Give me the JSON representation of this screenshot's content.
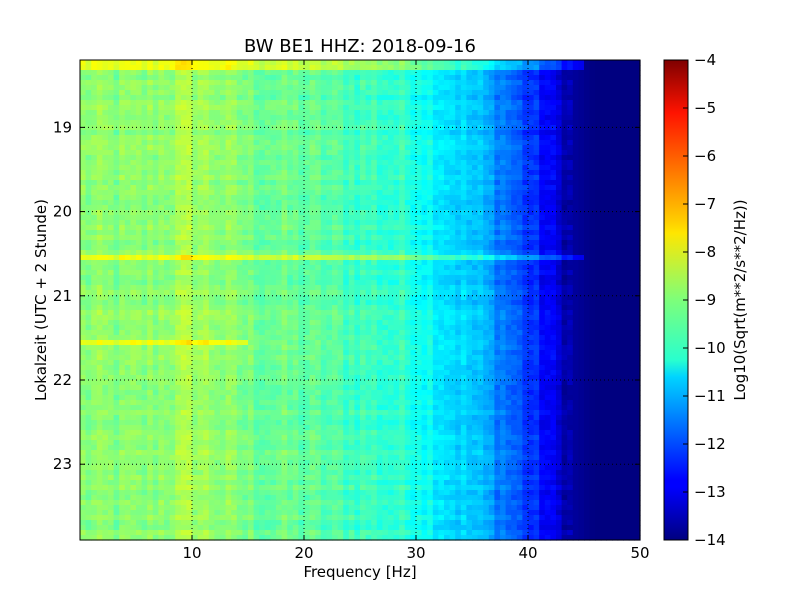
{
  "chart_data": {
    "type": "heatmap",
    "title": "BW BE1 HHZ: 2018-09-16",
    "xlabel": "Frequency [Hz]",
    "ylabel": "Lokalzeit (UTC + 2 Stunde)",
    "colorbar_label": "Log10(Sqrt(m**2/s**2/Hz))",
    "xlim": [
      0,
      50
    ],
    "ylim": [
      18.2,
      23.9
    ],
    "y_inverted": true,
    "x_ticks": [
      10,
      20,
      30,
      40,
      50
    ],
    "x_tick_labels": [
      "10",
      "20",
      "30",
      "40",
      "50"
    ],
    "y_ticks": [
      19,
      20,
      21,
      22,
      23
    ],
    "y_tick_labels": [
      "19",
      "20",
      "21",
      "22",
      "23"
    ],
    "grid": true,
    "colormap": "jet",
    "color_range": [
      -14,
      -4
    ],
    "colorbar_ticks": [
      -4,
      -5,
      -6,
      -7,
      -8,
      -9,
      -10,
      -11,
      -12,
      -13,
      -14
    ],
    "colorbar_tick_labels": [
      "−4",
      "−5",
      "−6",
      "−7",
      "−8",
      "−9",
      "−10",
      "−11",
      "−12",
      "−13",
      "−14"
    ],
    "frequency_profile": {
      "frequency_hz": [
        0,
        5,
        10,
        15,
        20,
        25,
        30,
        33,
        36,
        38,
        40,
        42,
        44,
        46,
        50
      ],
      "value": [
        -8.9,
        -9.0,
        -8.6,
        -9.1,
        -9.3,
        -9.6,
        -9.9,
        -10.5,
        -11.0,
        -11.6,
        -12.2,
        -12.9,
        -13.7,
        -14.0,
        -14.0
      ]
    },
    "bright_bands": [
      {
        "time": 18.25,
        "max_frequency_hz": 45
      },
      {
        "time": 20.55,
        "max_frequency_hz": 45
      },
      {
        "time": 21.55,
        "max_frequency_hz": 15
      }
    ]
  }
}
